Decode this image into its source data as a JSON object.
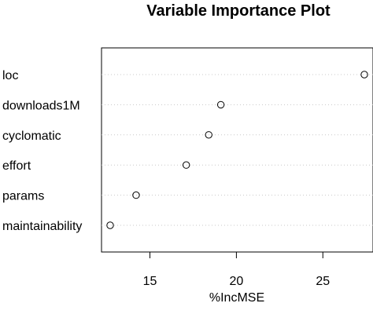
{
  "chart_data": {
    "type": "scatter",
    "title": "Variable Importance Plot",
    "xlabel": "%IncMSE",
    "ylabel": "",
    "categories": [
      "loc",
      "downloads1M",
      "cyclomatic",
      "effort",
      "params",
      "maintainability"
    ],
    "values": [
      27.4,
      19.1,
      18.4,
      17.1,
      14.2,
      12.7
    ],
    "xlim": [
      12.2,
      27.9
    ],
    "xticks": [
      15,
      20,
      25
    ],
    "grid": "dotted horizontal guide lines",
    "legend": "none",
    "marker": "open-circle"
  }
}
